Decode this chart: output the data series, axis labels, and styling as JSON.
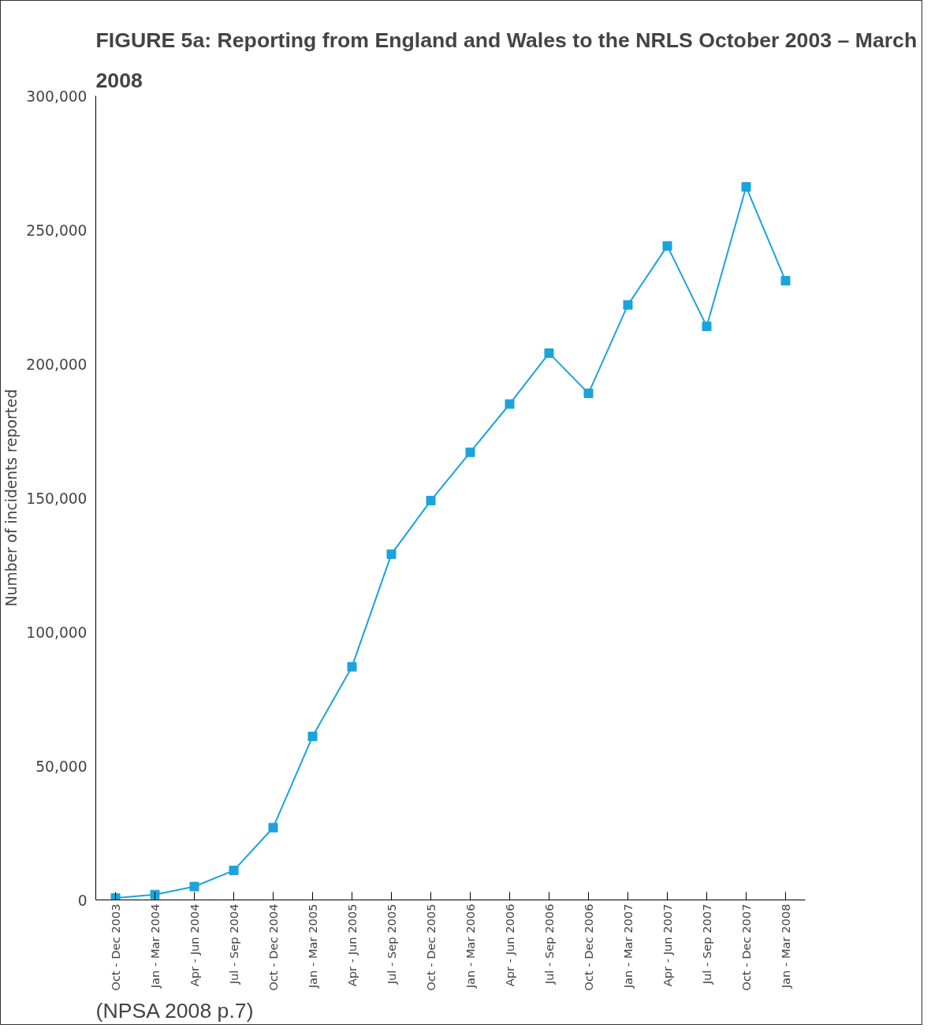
{
  "chart_data": {
    "type": "line",
    "title": "FIGURE 5a: Reporting from England and Wales to the NRLS October 2003 – March 2008",
    "ylabel": "Number of incidents reported",
    "categories": [
      "Oct - Dec 2003",
      "Jan - Mar 2004",
      "Apr - Jun 2004",
      "Jul - Sep 2004",
      "Oct - Dec 2004",
      "Jan - Mar 2005",
      "Apr - Jun 2005",
      "Jul - Sep 2005",
      "Oct - Dec 2005",
      "Jan - Mar 2006",
      "Apr - Jun 2006",
      "Jul - Sep 2006",
      "Oct - Dec 2006",
      "Jan - Mar 2007",
      "Apr - Jun 2007",
      "Jul - Sep 2007",
      "Oct - Dec 2007",
      "Jan - Mar 2008"
    ],
    "series": [
      {
        "color": "#1ba3dc",
        "values": [
          700,
          2000,
          5000,
          11000,
          27000,
          61000,
          87000,
          129000,
          149000,
          167000,
          185000,
          204000,
          189000,
          222000,
          244000,
          214000,
          266000,
          231000
        ]
      }
    ],
    "ylim": [
      0,
      300000
    ],
    "yticks": [
      {
        "value": 0,
        "label": "0"
      },
      {
        "value": 50000,
        "label": "50,000"
      },
      {
        "value": 100000,
        "label": "100,000"
      },
      {
        "value": 150000,
        "label": "150,000"
      },
      {
        "value": 200000,
        "label": "200,000"
      },
      {
        "value": 250000,
        "label": "250,000"
      },
      {
        "value": 300000,
        "label": "300,000"
      }
    ],
    "marker": "square",
    "line_style": "solid",
    "grid": false,
    "annotations": [
      "(NPSA 2008 p.7)"
    ]
  }
}
